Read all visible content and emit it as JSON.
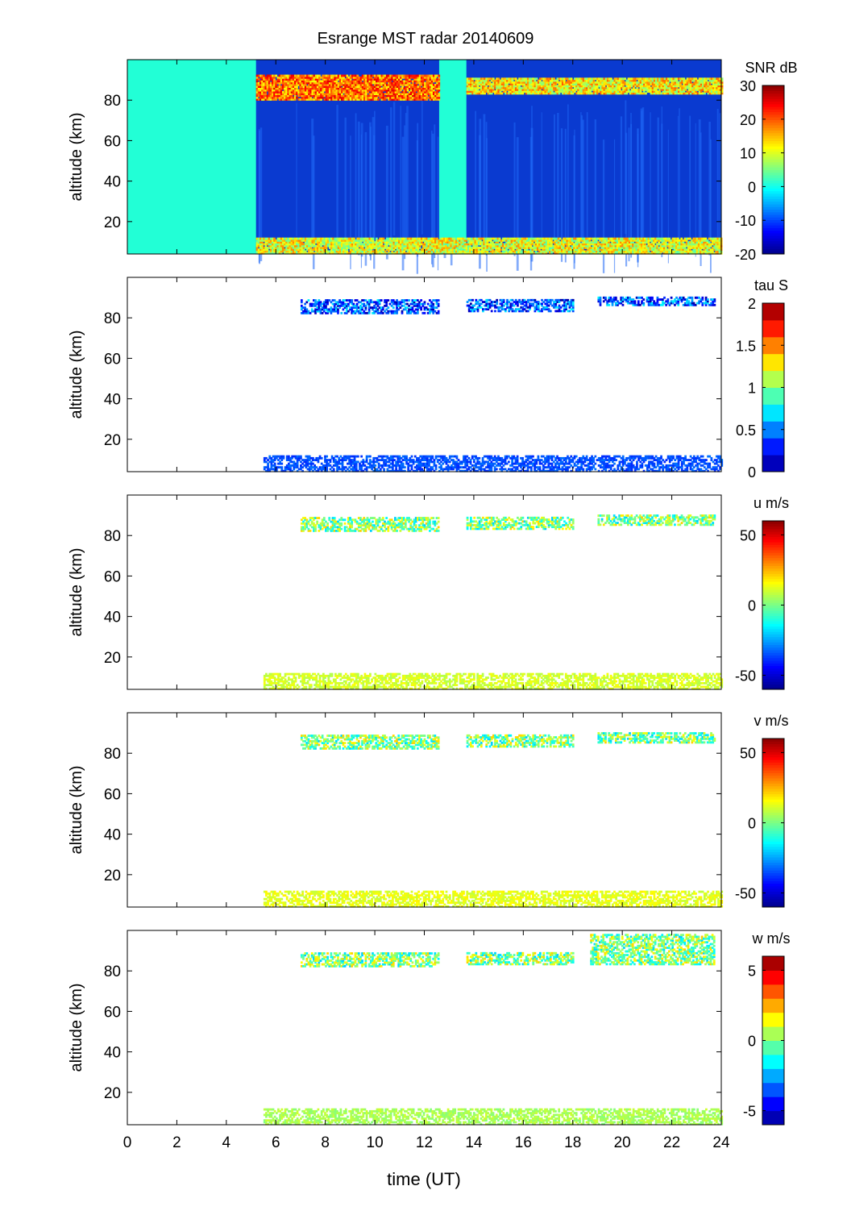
{
  "title": "Esrange MST radar 20140609",
  "xlabel": "time (UT)",
  "colors": {
    "jet": [
      "#00008f",
      "#0000ff",
      "#0080ff",
      "#00ffff",
      "#80ff80",
      "#ffff00",
      "#ff8000",
      "#ff0000",
      "#800000"
    ],
    "masked_fill": "#22ffd6"
  },
  "chart_data": [
    {
      "type": "heatmap",
      "ylabel": "altitude (km)",
      "xlim": [
        0,
        24
      ],
      "ylim": [
        4,
        100
      ],
      "yticks": [
        20,
        40,
        60,
        80
      ],
      "colorbar": {
        "label": "SNR dB",
        "range": [
          -20,
          30
        ],
        "ticks": [
          30,
          20,
          10,
          0,
          -10,
          -20
        ],
        "levels": null
      },
      "no_data_intervals": [
        [
          0,
          5.2
        ],
        [
          12.6,
          13.7
        ]
      ],
      "layers": [
        {
          "t": [
            5.2,
            12.6
          ],
          "z": [
            80,
            92
          ],
          "value": 18
        },
        {
          "t": [
            13.7,
            24.0
          ],
          "z": [
            83,
            91
          ],
          "value": 12
        },
        {
          "t": [
            5.2,
            24.0
          ],
          "z": [
            4,
            12
          ],
          "value": 10
        }
      ]
    },
    {
      "type": "heatmap",
      "ylabel": "altitude (km)",
      "xlim": [
        0,
        24
      ],
      "ylim": [
        4,
        100
      ],
      "yticks": [
        20,
        40,
        60,
        80
      ],
      "colorbar": {
        "label": "tau S",
        "range": [
          0,
          2
        ],
        "ticks": [
          "2",
          "1.5",
          "1",
          "0.5",
          "0"
        ],
        "levels": 10
      },
      "layers": [
        {
          "t": [
            7.0,
            12.6
          ],
          "z": [
            82,
            89
          ],
          "value": 0.4
        },
        {
          "t": [
            13.7,
            18.0
          ],
          "z": [
            83,
            89
          ],
          "value": 0.4
        },
        {
          "t": [
            19.0,
            23.7
          ],
          "z": [
            86,
            90
          ],
          "value": 0.4
        },
        {
          "t": [
            5.5,
            24.0
          ],
          "z": [
            4,
            12
          ],
          "value": 0.4
        }
      ]
    },
    {
      "type": "heatmap",
      "ylabel": "altitude (km)",
      "xlim": [
        0,
        24
      ],
      "ylim": [
        4,
        100
      ],
      "yticks": [
        20,
        40,
        60,
        80
      ],
      "colorbar": {
        "label": "u m/s",
        "range": [
          -60,
          60
        ],
        "ticks": [
          "50",
          "0",
          "-50"
        ],
        "levels": null
      },
      "layers": [
        {
          "t": [
            7.0,
            12.6
          ],
          "z": [
            82,
            89
          ],
          "value": 0
        },
        {
          "t": [
            13.7,
            18.0
          ],
          "z": [
            83,
            89
          ],
          "value": 0
        },
        {
          "t": [
            19.0,
            23.7
          ],
          "z": [
            85,
            90
          ],
          "value": 0
        },
        {
          "t": [
            5.5,
            24.0
          ],
          "z": [
            4,
            12
          ],
          "value": 10
        }
      ]
    },
    {
      "type": "heatmap",
      "ylabel": "altitude (km)",
      "xlim": [
        0,
        24
      ],
      "ylim": [
        4,
        100
      ],
      "yticks": [
        20,
        40,
        60,
        80
      ],
      "colorbar": {
        "label": "v m/s",
        "range": [
          -60,
          60
        ],
        "ticks": [
          "50",
          "0",
          "-50"
        ],
        "levels": null
      },
      "layers": [
        {
          "t": [
            7.0,
            12.6
          ],
          "z": [
            82,
            89
          ],
          "value": 0
        },
        {
          "t": [
            13.7,
            18.0
          ],
          "z": [
            83,
            89
          ],
          "value": 0
        },
        {
          "t": [
            19.0,
            23.7
          ],
          "z": [
            85,
            90
          ],
          "value": 0
        },
        {
          "t": [
            5.5,
            24.0
          ],
          "z": [
            4,
            12
          ],
          "value": 12
        }
      ]
    },
    {
      "type": "heatmap",
      "ylabel": "altitude (km)",
      "xlim": [
        0,
        24
      ],
      "ylim": [
        4,
        100
      ],
      "yticks": [
        20,
        40,
        60,
        80
      ],
      "xticks": [
        0,
        2,
        4,
        6,
        8,
        10,
        12,
        14,
        16,
        18,
        20,
        22,
        24
      ],
      "colorbar": {
        "label": "w m/s",
        "range": [
          -6,
          6
        ],
        "ticks": [
          "5",
          "0",
          "-5"
        ],
        "levels": 12
      },
      "layers": [
        {
          "t": [
            7.0,
            12.6
          ],
          "z": [
            82,
            89
          ],
          "value": 0
        },
        {
          "t": [
            13.7,
            18.0
          ],
          "z": [
            83,
            89
          ],
          "value": 0
        },
        {
          "t": [
            18.7,
            23.7
          ],
          "z": [
            83,
            98
          ],
          "value": 0
        },
        {
          "t": [
            5.5,
            24.0
          ],
          "z": [
            4,
            12
          ],
          "value": 0.5
        }
      ]
    }
  ]
}
